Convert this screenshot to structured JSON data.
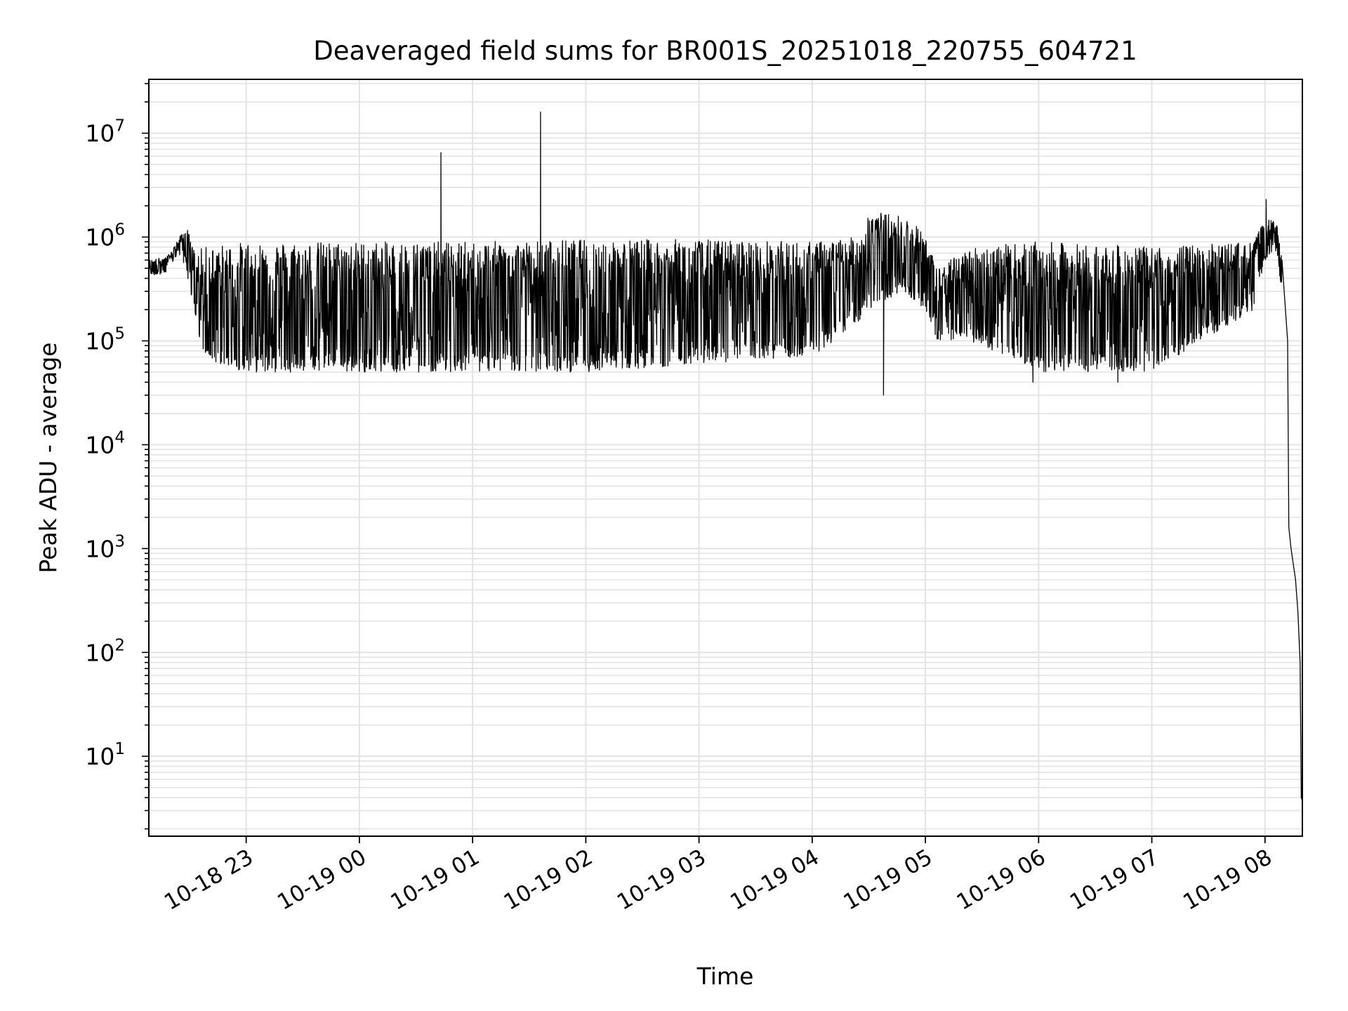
{
  "chart_data": {
    "type": "line",
    "title": "Deaveraged field sums for BR001S_20251018_220755_604721",
    "xlabel": "Time",
    "ylabel": "Peak ADU - average",
    "yscale": "log",
    "xlim": [
      22.14,
      32.33
    ],
    "ylim": [
      1.7,
      33000000.0
    ],
    "grid": true,
    "line_color": "#000000",
    "grid_color": "#e3e3e3",
    "x_ticks": [
      {
        "value": 23,
        "label": "10-18 23"
      },
      {
        "value": 24,
        "label": "10-19 00"
      },
      {
        "value": 25,
        "label": "10-19 01"
      },
      {
        "value": 26,
        "label": "10-19 02"
      },
      {
        "value": 27,
        "label": "10-19 03"
      },
      {
        "value": 28,
        "label": "10-19 04"
      },
      {
        "value": 29,
        "label": "10-19 05"
      },
      {
        "value": 30,
        "label": "10-19 06"
      },
      {
        "value": 31,
        "label": "10-19 07"
      },
      {
        "value": 32,
        "label": "10-19 08"
      }
    ],
    "y_ticks": [
      {
        "value": 10,
        "base": "10",
        "exp": "1"
      },
      {
        "value": 100,
        "base": "10",
        "exp": "2"
      },
      {
        "value": 1000,
        "base": "10",
        "exp": "3"
      },
      {
        "value": 10000,
        "base": "10",
        "exp": "4"
      },
      {
        "value": 100000,
        "base": "10",
        "exp": "5"
      },
      {
        "value": 1000000,
        "base": "10",
        "exp": "6"
      },
      {
        "value": 10000000,
        "base": "10",
        "exp": "7"
      }
    ],
    "series": [
      {
        "name": "Peak ADU - average",
        "x_note": "hours since 10-18 00:00",
        "envelope": [
          {
            "x": 22.14,
            "low": 420000,
            "high": 600000
          },
          {
            "x": 22.3,
            "low": 450000,
            "high": 650000
          },
          {
            "x": 22.4,
            "low": 700000,
            "high": 950000
          },
          {
            "x": 22.47,
            "low": 500000,
            "high": 1300000
          },
          {
            "x": 22.55,
            "low": 150000,
            "high": 700000
          },
          {
            "x": 22.62,
            "low": 65000,
            "high": 800000
          },
          {
            "x": 23.0,
            "low": 50000,
            "high": 900000
          },
          {
            "x": 24.0,
            "low": 50000,
            "high": 900000
          },
          {
            "x": 25.0,
            "low": 50000,
            "high": 900000
          },
          {
            "x": 26.0,
            "low": 50000,
            "high": 950000
          },
          {
            "x": 27.0,
            "low": 60000,
            "high": 950000
          },
          {
            "x": 28.0,
            "low": 70000,
            "high": 900000
          },
          {
            "x": 28.4,
            "low": 150000,
            "high": 1000000
          },
          {
            "x": 28.5,
            "low": 200000,
            "high": 1800000
          },
          {
            "x": 28.8,
            "low": 300000,
            "high": 1600000
          },
          {
            "x": 29.0,
            "low": 200000,
            "high": 1100000
          },
          {
            "x": 29.1,
            "low": 100000,
            "high": 500000
          },
          {
            "x": 29.4,
            "low": 100000,
            "high": 800000
          },
          {
            "x": 30.0,
            "low": 50000,
            "high": 900000
          },
          {
            "x": 31.0,
            "low": 50000,
            "high": 800000
          },
          {
            "x": 31.9,
            "low": 200000,
            "high": 900000
          },
          {
            "x": 32.0,
            "low": 600000,
            "high": 1500000
          },
          {
            "x": 32.1,
            "low": 700000,
            "high": 1400000
          },
          {
            "x": 32.15,
            "low": 300000,
            "high": 600000
          }
        ],
        "spikes": [
          {
            "x": 24.72,
            "y": 6500000
          },
          {
            "x": 25.6,
            "y": 16000000
          },
          {
            "x": 28.63,
            "y": 30000
          },
          {
            "x": 29.95,
            "y": 40000
          },
          {
            "x": 30.7,
            "y": 40000
          },
          {
            "x": 32.01,
            "y": 2300000
          }
        ],
        "tail": [
          {
            "x": 32.15,
            "y": 600000
          },
          {
            "x": 32.2,
            "y": 100000
          },
          {
            "x": 32.21,
            "y": 1600
          },
          {
            "x": 32.23,
            "y": 1000
          },
          {
            "x": 32.27,
            "y": 500
          },
          {
            "x": 32.29,
            "y": 250
          },
          {
            "x": 32.31,
            "y": 80
          },
          {
            "x": 32.32,
            "y": 4
          },
          {
            "x": 32.33,
            "y": 3.7
          }
        ]
      }
    ]
  }
}
